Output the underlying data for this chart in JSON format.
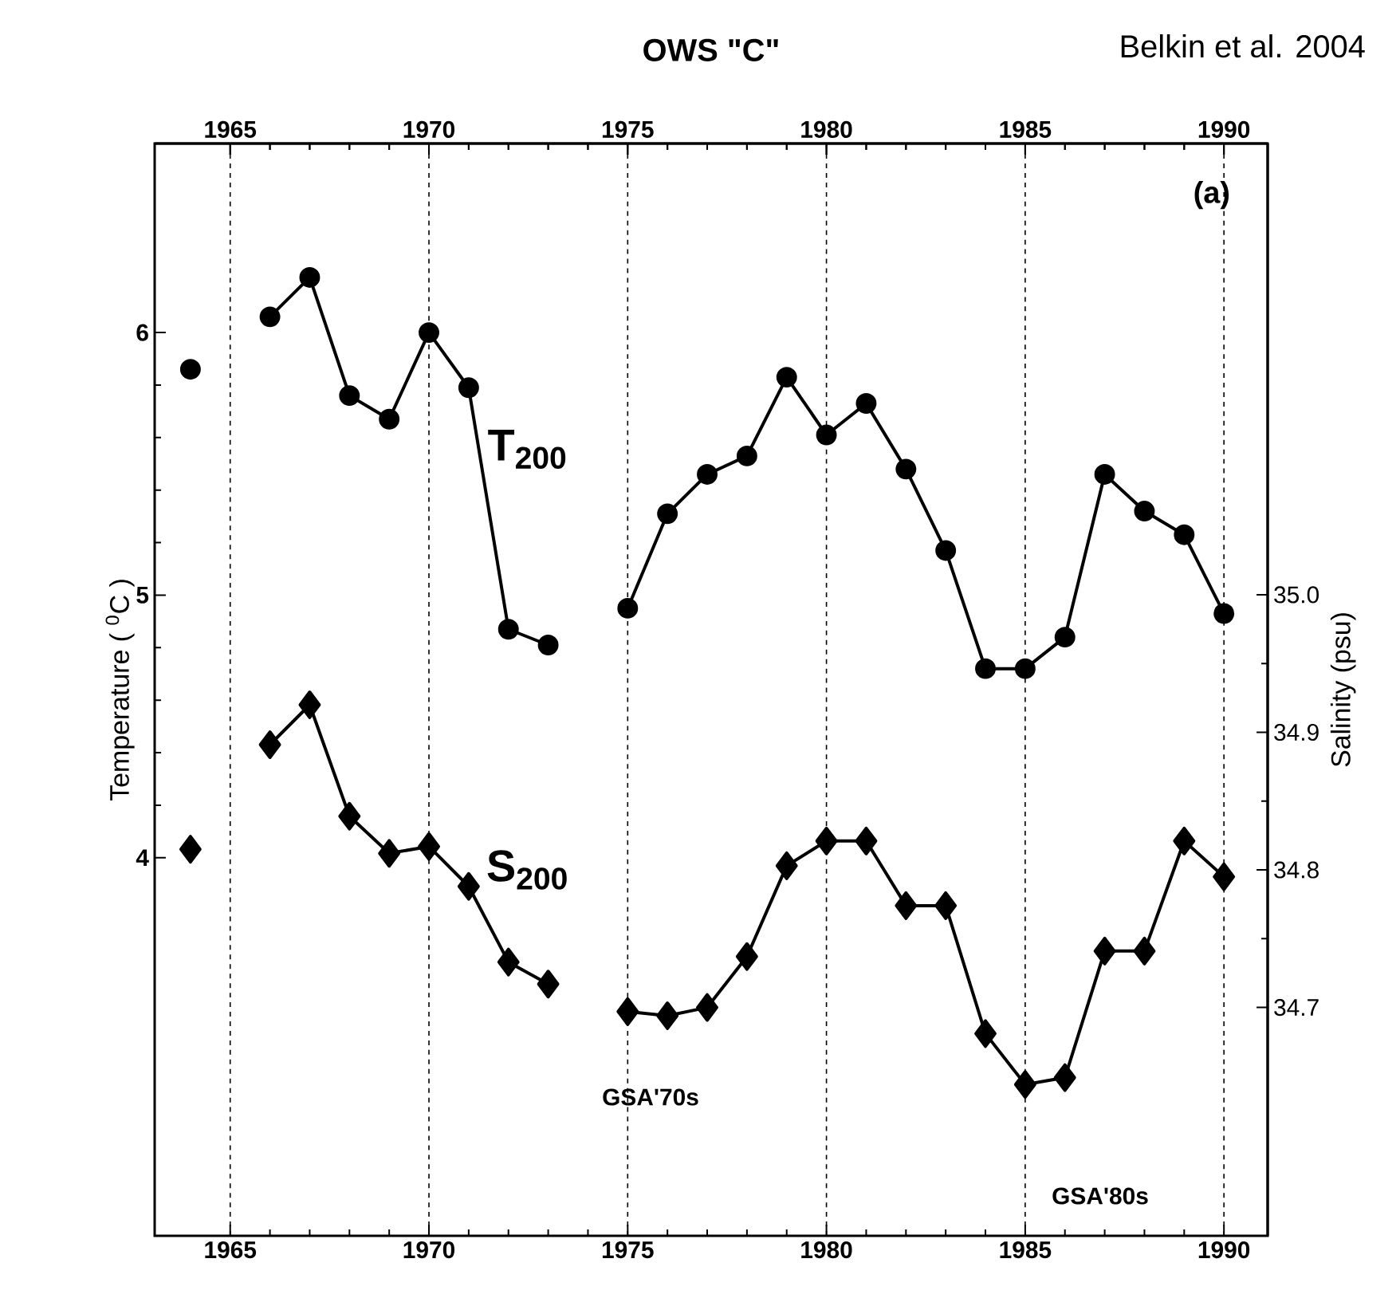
{
  "chart_data": {
    "type": "line",
    "title": "OWS \"C\"",
    "ylabel": "Temperature ( $^{0}$C )",
    "y2label": "Salinity (psu)",
    "annotations": [
      "Belkin et al. 2004",
      "(a)",
      "GSA'70s",
      "GSA'80s"
    ],
    "x": [
      1964,
      1965,
      1966,
      1967,
      1968,
      1969,
      1970,
      1971,
      1972,
      1973,
      1974,
      1975,
      1976,
      1977,
      1978,
      1979,
      1980,
      1981,
      1982,
      1983,
      1984,
      1985,
      1986,
      1987,
      1988,
      1989,
      1990
    ],
    "series": [
      {
        "name": "T$_{200}$",
        "color": "#000000",
        "marker": "circle",
        "values": [
          5.86,
          null,
          6.06,
          6.21,
          5.76,
          5.67,
          6.0,
          5.79,
          4.87,
          4.81,
          null,
          4.95,
          5.31,
          5.46,
          5.53,
          5.83,
          5.61,
          5.73,
          5.48,
          5.17,
          4.72,
          4.72,
          4.84,
          5.46,
          5.32,
          5.23,
          4.93
        ]
      },
      {
        "name": "S$_{200}$",
        "color": "#000000",
        "marker": "diamond",
        "axis": "y2",
        "values": [
          34.815,
          null,
          34.891,
          34.92,
          34.839,
          34.812,
          34.817,
          34.788,
          34.733,
          34.717,
          null,
          34.697,
          34.694,
          34.7,
          34.737,
          34.803,
          34.821,
          34.821,
          34.774,
          34.774,
          34.681,
          34.644,
          34.649,
          34.741,
          34.741,
          34.821,
          34.795
        ]
      }
    ],
    "xlim": [
      1963.1,
      1991.1
    ],
    "xticks": [
      1965,
      1970,
      1975,
      1980,
      1985,
      1990
    ],
    "x2lim": [
      1963.1,
      1991.1
    ],
    "x2ticks": [
      1965,
      1970,
      1975,
      1980,
      1985,
      1990
    ],
    "ylim": [
      2.56,
      6.72
    ],
    "yticks": [
      4,
      5,
      6
    ],
    "y2lim": [
      34.534,
      35.328
    ],
    "y2ticks": [
      34.7,
      34.8,
      34.9,
      {
        "value": 35.0,
        "label": "35.0"
      }
    ],
    "grid": "x",
    "line_style": "solid"
  }
}
